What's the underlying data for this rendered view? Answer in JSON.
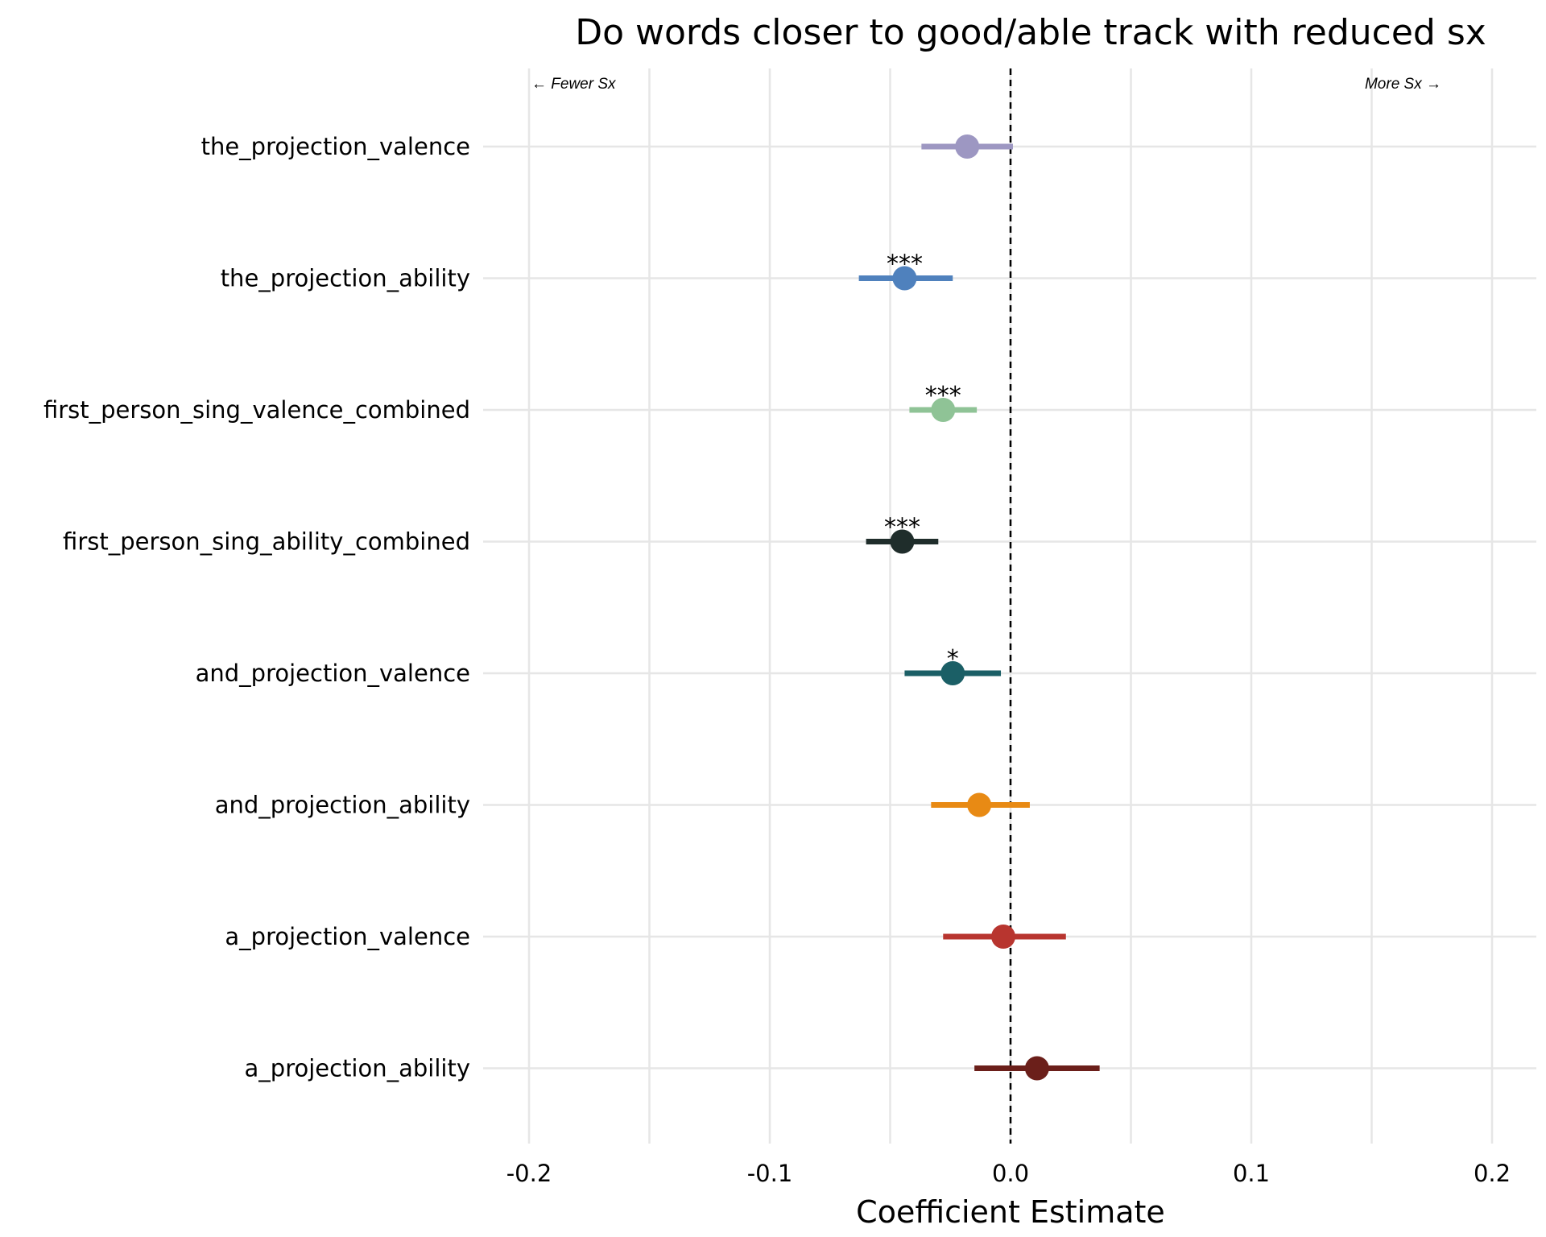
{
  "chart_data": {
    "type": "dot-errorbar",
    "title": "Do words closer to good/able track with reduced sx",
    "xlabel": "Coefficient Estimate",
    "xlim": [
      -0.22,
      0.22
    ],
    "xticks": [
      -0.2,
      -0.1,
      0.0,
      0.1,
      0.2
    ],
    "xtick_labels": [
      "-0.2",
      "-0.1",
      "0.0",
      "0.1",
      "0.2"
    ],
    "reference_line": 0.0,
    "grid": true,
    "annotations": {
      "left": "← Fewer Sx",
      "right": "More Sx →"
    },
    "series": [
      {
        "label": "the_projection_valence",
        "estimate": -0.018,
        "ci_low": -0.037,
        "ci_high": 0.001,
        "sig": "",
        "color": "#9d97c2"
      },
      {
        "label": "the_projection_ability",
        "estimate": -0.044,
        "ci_low": -0.063,
        "ci_high": -0.024,
        "sig": "***",
        "color": "#4f81bd"
      },
      {
        "label": "first_person_sing_valence_combined",
        "estimate": -0.028,
        "ci_low": -0.042,
        "ci_high": -0.014,
        "sig": "***",
        "color": "#8fc396"
      },
      {
        "label": "first_person_sing_ability_combined",
        "estimate": -0.045,
        "ci_low": -0.06,
        "ci_high": -0.03,
        "sig": "***",
        "color": "#1f2d2b"
      },
      {
        "label": "and_projection_valence",
        "estimate": -0.024,
        "ci_low": -0.044,
        "ci_high": -0.004,
        "sig": "*",
        "color": "#1b5f66"
      },
      {
        "label": "and_projection_ability",
        "estimate": -0.013,
        "ci_low": -0.033,
        "ci_high": 0.008,
        "sig": "",
        "color": "#e88a14"
      },
      {
        "label": "a_projection_valence",
        "estimate": -0.003,
        "ci_low": -0.028,
        "ci_high": 0.023,
        "sig": "",
        "color": "#b8352f"
      },
      {
        "label": "a_projection_ability",
        "estimate": 0.011,
        "ci_low": -0.015,
        "ci_high": 0.037,
        "sig": "",
        "color": "#6b1f1a"
      }
    ]
  }
}
